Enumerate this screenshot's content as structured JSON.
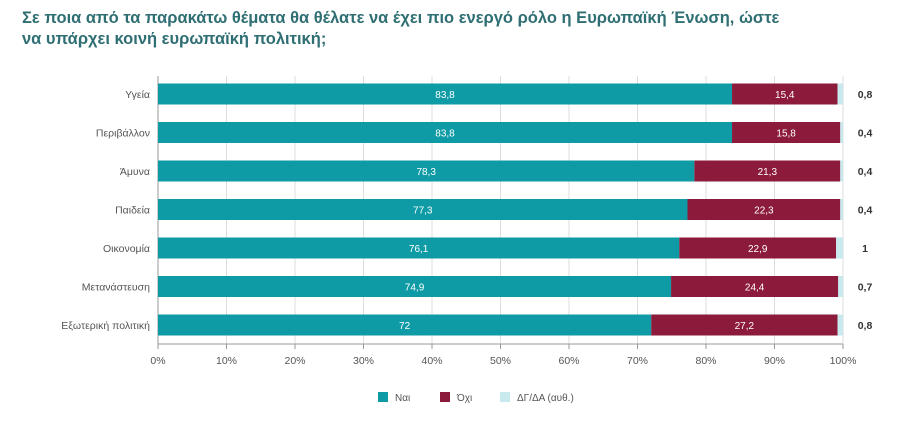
{
  "title_line1": "Σε ποια από τα παρακάτω θέματα θα θέλατε να έχει πιο ενεργό ρόλο η Ευρωπαϊκή Ένωση, ώστε",
  "title_line2": "να υπάρχει κοινή ευρωπαϊκή πολιτική;",
  "colors": {
    "yes": "#0e9ba5",
    "no": "#8b1a3b",
    "dk": "#c8e9ed",
    "grid": "#dddddd",
    "axis": "#999999"
  },
  "chart_data": {
    "type": "bar",
    "orientation": "horizontal",
    "stacked": true,
    "categories": [
      "Υγεία",
      "Περιβάλλον",
      "Άμυνα",
      "Παιδεία",
      "Οικονομία",
      "Μετανάστευση",
      "Εξωτερική πολιτική"
    ],
    "series": [
      {
        "name": "Ναι",
        "values": [
          83.8,
          83.8,
          78.3,
          77.3,
          76.1,
          74.9,
          72
        ],
        "labels": [
          "83,8",
          "83,8",
          "78,3",
          "77,3",
          "76,1",
          "74,9",
          "72"
        ]
      },
      {
        "name": "Όχι",
        "values": [
          15.4,
          15.8,
          21.3,
          22.3,
          22.9,
          24.4,
          27.2
        ],
        "labels": [
          "15,4",
          "15,8",
          "21,3",
          "22,3",
          "22,9",
          "24,4",
          "27,2"
        ]
      },
      {
        "name": "ΔΓ/ΔΑ (αυθ.)",
        "values": [
          0.8,
          0.4,
          0.4,
          0.4,
          1,
          0.7,
          0.8
        ],
        "labels": [
          "0,8",
          "0,4",
          "0,4",
          "0,4",
          "1",
          "0,7",
          "0,8"
        ]
      }
    ],
    "xlim": [
      0,
      100
    ],
    "xticks": [
      "0%",
      "10%",
      "20%",
      "30%",
      "40%",
      "50%",
      "60%",
      "70%",
      "80%",
      "90%",
      "100%"
    ],
    "grid": true,
    "legend_position": "bottom-center"
  }
}
